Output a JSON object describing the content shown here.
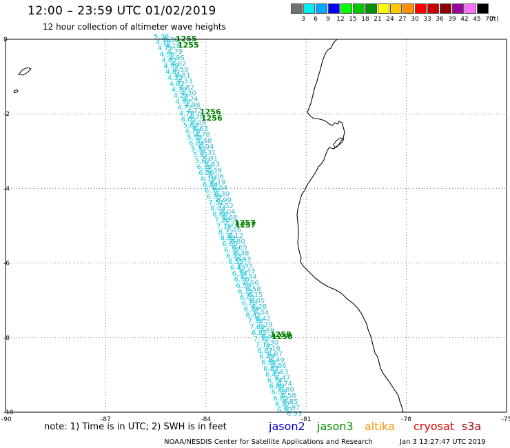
{
  "header": {
    "title": "12:00 – 23:59 UTC 01/02/2019",
    "subtitle": "12 hour collection of altimeter wave heights"
  },
  "legend": {
    "ticks": [
      "3",
      "6",
      "9",
      "12",
      "15",
      "18",
      "21",
      "24",
      "27",
      "30",
      "33",
      "36",
      "39",
      "42",
      "45",
      "70"
    ],
    "unit": "(ft)",
    "colors": [
      "#707070",
      "#00f0f0",
      "#00a8ff",
      "#0000ff",
      "#00ff00",
      "#00c800",
      "#009000",
      "#ffff00",
      "#ffc800",
      "#ff9000",
      "#ff0000",
      "#c80000",
      "#900000",
      "#a000a0",
      "#ff70ff",
      "#000000"
    ]
  },
  "map": {
    "x_ticks": [
      "-90",
      "-87",
      "-84",
      "-81",
      "-78",
      "-75"
    ],
    "y_ticks": [
      "0",
      "-2",
      "-4",
      "-6",
      "-8",
      "-10"
    ],
    "pass_labels": [
      "1255",
      "1255",
      "1256",
      "1256",
      "1257",
      "1257",
      "1258",
      "1258"
    ],
    "swh_values": [
      "5.36",
      "4.18",
      "4.79",
      "4.96",
      "4.62",
      "4.59",
      "4.81",
      "4.33",
      "4.82",
      "4.30",
      "4.24",
      "4.98",
      "4.72",
      "4.78",
      "6.05",
      "5.63",
      "4.78",
      "5.58",
      "6.04",
      "5.31",
      "5.91",
      "5.63",
      "6.39",
      "6.06",
      "6.19",
      "6.84",
      "6.30",
      "6.99",
      "7.52",
      "8.04",
      "8.68",
      "7.20",
      "7.16",
      "8.12",
      "8.80",
      "6.65",
      "6.38",
      "6.93",
      "6.55",
      "6.43",
      "6.34",
      "6.56",
      "6.58",
      "6.15",
      "6.05",
      "6.28",
      "6.34",
      "6.42",
      "7.39",
      "7.69",
      "6.85",
      "7.30",
      "7.16",
      "6.87",
      "6.49",
      "6.86",
      "6.83",
      "6.47",
      "6.74",
      "6.80",
      "6.58",
      "6.85",
      "6.97",
      "6.93"
    ],
    "track_color": "#00c8e0",
    "pass_label_color": "#008000",
    "coast_color": "#000000",
    "grid_color": "#7a7a7a"
  },
  "footer": {
    "note": "note:  1) Time is in UTC;  2) SWH is in feet",
    "satellites": [
      {
        "name": "jason2",
        "color": "#0000d0"
      },
      {
        "name": "jason3",
        "color": "#009000"
      },
      {
        "name": "altika",
        "color": "#ff9000"
      },
      {
        "name": "cryosat",
        "color": "#e00000"
      },
      {
        "name": "s3a",
        "color": "#900000"
      }
    ],
    "credit": "NOAA/NESDIS Center for Satellite Applications and Research",
    "timestamp": "Jan  3 13:27:47 UTC 2019"
  }
}
